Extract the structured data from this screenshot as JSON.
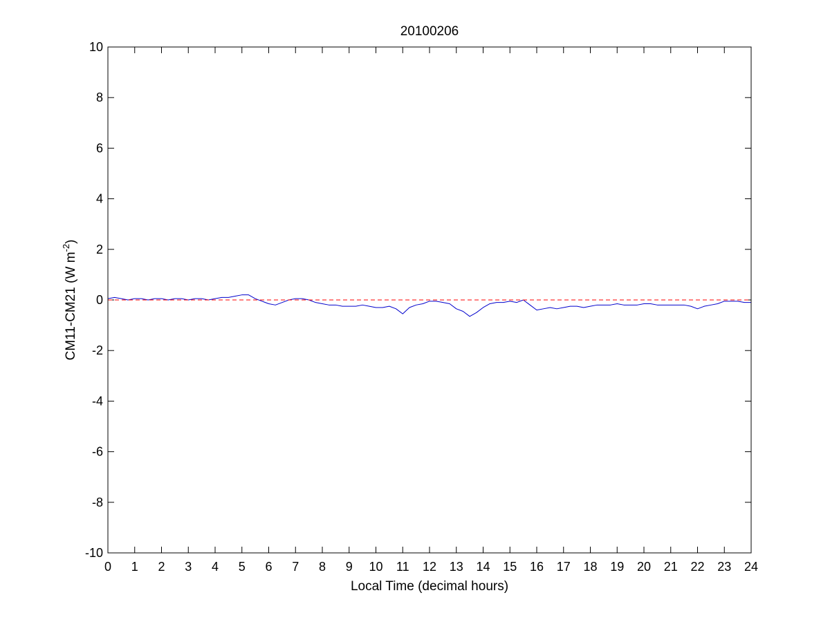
{
  "chart_data": {
    "type": "line",
    "title": "20100206",
    "xlabel": "Local Time (decimal hours)",
    "ylabel": {
      "main": "CM11-CM21 (W m",
      "superscript": "-2",
      "close": ")"
    },
    "xlim": [
      0,
      24
    ],
    "ylim": [
      -10,
      10
    ],
    "xticks": [
      0,
      1,
      2,
      3,
      4,
      5,
      6,
      7,
      8,
      9,
      10,
      11,
      12,
      13,
      14,
      15,
      16,
      17,
      18,
      19,
      20,
      21,
      22,
      23,
      24
    ],
    "yticks": [
      -10,
      -8,
      -6,
      -4,
      -2,
      0,
      2,
      4,
      6,
      8,
      10
    ],
    "grid": false,
    "colors": {
      "series": "#0000cc",
      "reference": "#ff0000",
      "axes": "#000000"
    },
    "series": [
      {
        "style": "solid",
        "color": "#0000cc",
        "x": [
          0,
          0.25,
          0.5,
          0.75,
          1,
          1.25,
          1.5,
          1.75,
          2,
          2.25,
          2.5,
          2.75,
          3,
          3.25,
          3.5,
          3.75,
          4,
          4.25,
          4.5,
          4.75,
          5,
          5.25,
          5.5,
          5.75,
          6,
          6.25,
          6.5,
          6.75,
          7,
          7.25,
          7.5,
          7.75,
          8,
          8.25,
          8.5,
          8.75,
          9,
          9.25,
          9.5,
          9.75,
          10,
          10.25,
          10.5,
          10.75,
          11,
          11.25,
          11.5,
          11.75,
          12,
          12.25,
          12.5,
          12.75,
          13,
          13.25,
          13.5,
          13.75,
          14,
          14.25,
          14.5,
          14.75,
          15,
          15.25,
          15.5,
          15.75,
          16,
          16.25,
          16.5,
          16.75,
          17,
          17.25,
          17.5,
          17.75,
          18,
          18.25,
          18.5,
          18.75,
          19,
          19.25,
          19.5,
          19.75,
          20,
          20.25,
          20.5,
          20.75,
          21,
          21.25,
          21.5,
          21.75,
          22,
          22.25,
          22.5,
          22.75,
          23,
          23.25,
          23.5,
          23.75,
          24
        ],
        "y": [
          0.05,
          0.1,
          0.05,
          0.0,
          0.05,
          0.05,
          0.0,
          0.05,
          0.05,
          0.0,
          0.05,
          0.05,
          0.0,
          0.05,
          0.05,
          0.0,
          0.05,
          0.1,
          0.1,
          0.15,
          0.2,
          0.2,
          0.05,
          -0.05,
          -0.15,
          -0.2,
          -0.1,
          0.0,
          0.05,
          0.05,
          0.0,
          -0.1,
          -0.15,
          -0.2,
          -0.2,
          -0.25,
          -0.25,
          -0.25,
          -0.2,
          -0.25,
          -0.3,
          -0.3,
          -0.25,
          -0.35,
          -0.55,
          -0.3,
          -0.2,
          -0.15,
          -0.05,
          -0.05,
          -0.1,
          -0.15,
          -0.35,
          -0.45,
          -0.65,
          -0.5,
          -0.3,
          -0.15,
          -0.1,
          -0.1,
          -0.05,
          -0.1,
          0.0,
          -0.2,
          -0.4,
          -0.35,
          -0.3,
          -0.35,
          -0.3,
          -0.25,
          -0.25,
          -0.3,
          -0.25,
          -0.2,
          -0.2,
          -0.2,
          -0.15,
          -0.2,
          -0.2,
          -0.2,
          -0.15,
          -0.15,
          -0.2,
          -0.2,
          -0.2,
          -0.2,
          -0.2,
          -0.25,
          -0.35,
          -0.25,
          -0.2,
          -0.15,
          -0.05,
          -0.05,
          -0.05,
          -0.1,
          -0.1
        ]
      },
      {
        "style": "dashed",
        "color": "#ff0000",
        "x": [
          0,
          24
        ],
        "y": [
          0,
          0
        ]
      }
    ]
  }
}
